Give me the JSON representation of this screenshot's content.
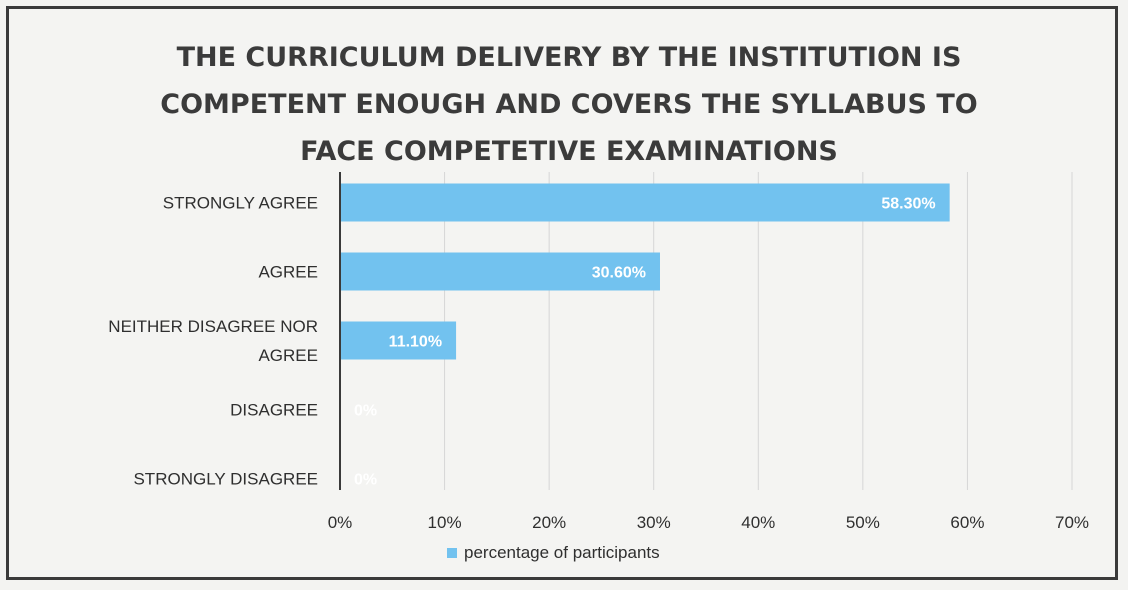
{
  "chart_data": {
    "type": "bar",
    "orientation": "horizontal",
    "title_lines": [
      "THE CURRICULUM DELIVERY BY THE INSTITUTION IS",
      "COMPETENT ENOUGH AND COVERS THE SYLLABUS TO",
      "FACE COMPETETIVE EXAMINATIONS"
    ],
    "categories": [
      [
        "STRONGLY AGREE"
      ],
      [
        "AGREE"
      ],
      [
        "NEITHER DISAGREE NOR",
        "AGREE"
      ],
      [
        "DISAGREE"
      ],
      [
        "STRONGLY DISAGREE"
      ]
    ],
    "series": [
      {
        "name": "percentage of participants",
        "values": [
          58.3,
          30.6,
          11.1,
          0,
          0
        ],
        "data_labels": [
          "58.30%",
          "30.60%",
          "11.10%",
          "0%",
          "0%"
        ]
      }
    ],
    "xlim": [
      0,
      70
    ],
    "x_ticks": [
      "0%",
      "10%",
      "20%",
      "30%",
      "40%",
      "50%",
      "60%",
      "70%"
    ],
    "grid": "vertical",
    "legend": "bottom",
    "colors": {
      "bar": "#72c2ef",
      "grid": "#d6d6d6",
      "axis": "#3a3a3a",
      "background": "#f4f4f2"
    }
  }
}
